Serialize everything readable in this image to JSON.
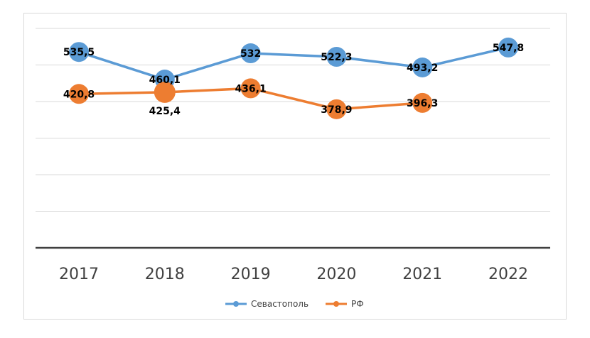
{
  "chart_data": {
    "type": "line",
    "categories": [
      "2017",
      "2018",
      "2019",
      "2020",
      "2021",
      "2022"
    ],
    "series": [
      {
        "name": "Севастополь",
        "color": "#5b9bd5",
        "values": [
          535.5,
          460.1,
          532,
          522.3,
          493.2,
          547.8
        ],
        "labels": [
          "535,5",
          "460,1",
          "532",
          "522,3",
          "493,2",
          "547,8"
        ]
      },
      {
        "name": "РФ",
        "color": "#ed7d31",
        "values": [
          420.8,
          425.4,
          436.1,
          378.9,
          396.3,
          null
        ],
        "labels": [
          "420,8",
          "425,4",
          "436,1",
          "378,9",
          "396,3",
          null
        ]
      }
    ],
    "ylim": [
      0,
      600
    ],
    "y_gridlines": true,
    "legend_position": "bottom"
  }
}
